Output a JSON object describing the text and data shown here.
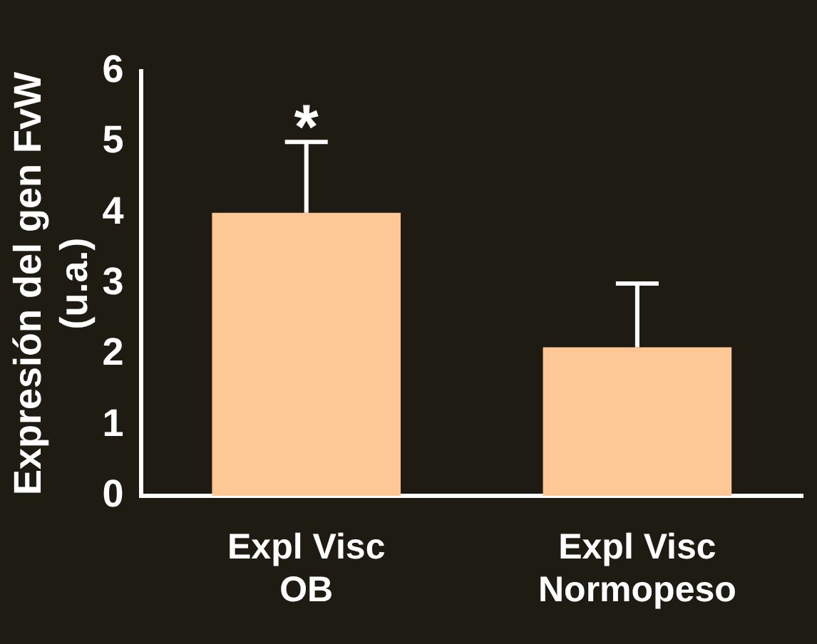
{
  "chart_data": {
    "type": "bar",
    "ylabel": "Expresión del gen FvW\n(u.a.)",
    "categories": [
      "Expl Visc OB",
      "Expl Visc Normopeso"
    ],
    "values": [
      4.0,
      2.1
    ],
    "color": "#fdc896",
    "errors": [
      [
        4.0,
        5.0
      ],
      [
        2.1,
        3.0
      ]
    ],
    "ylim": [
      0,
      6
    ],
    "yticks": [
      0,
      1,
      2,
      3,
      4,
      5,
      6
    ],
    "annotations": [
      {
        "text": "*",
        "x": "Expl Visc OB",
        "y": 5.0
      }
    ],
    "grid": false,
    "legend": false
  }
}
